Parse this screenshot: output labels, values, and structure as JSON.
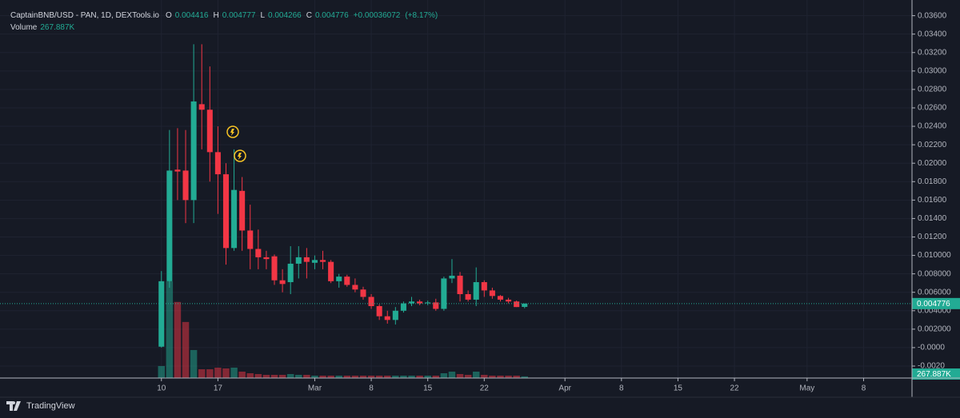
{
  "chart_data": {
    "type": "candlestick",
    "title": "CaptainBNB/USD - PAN, 1D, DEXTools.io",
    "ohlc_keys": [
      "O",
      "H",
      "L",
      "C"
    ],
    "change": "+0.00036072",
    "change_percent": "(+8.17%)",
    "volume_title": "Volume",
    "volume_label": "267.887K",
    "up_color": "#22ab94",
    "down_color": "#f23645",
    "grid": true,
    "x": [
      "02-10",
      "02-11",
      "02-12",
      "02-13",
      "02-14",
      "02-15",
      "02-16",
      "02-17",
      "02-18",
      "02-19",
      "02-20",
      "02-21",
      "02-22",
      "02-23",
      "02-24",
      "02-25",
      "02-26",
      "02-27",
      "02-28",
      "03-01",
      "03-02",
      "03-03",
      "03-04",
      "03-05",
      "03-06",
      "03-07",
      "03-08",
      "03-09",
      "03-10",
      "03-11",
      "03-12",
      "03-13",
      "03-14",
      "03-15",
      "03-16",
      "03-17",
      "03-18",
      "03-19",
      "03-20",
      "03-21",
      "03-22",
      "03-23",
      "03-24",
      "03-25",
      "03-26",
      "03-27"
    ],
    "open": [
      0.0001,
      0.0072,
      0.0193,
      0.0192,
      0.016,
      0.0264,
      0.0258,
      0.0212,
      0.0188,
      0.0108,
      0.017,
      0.0127,
      0.0107,
      0.0098,
      0.0099,
      0.0073,
      0.0071,
      0.0091,
      0.0098,
      0.0092,
      0.0095,
      0.0093,
      0.0072,
      0.0077,
      0.0068,
      0.0063,
      0.0055,
      0.0045,
      0.0034,
      0.003,
      0.004,
      0.0048,
      0.005,
      0.0048,
      0.0049,
      0.0042,
      0.0075,
      0.0078,
      0.0058,
      0.0052,
      0.0071,
      0.0062,
      0.0056,
      0.0052,
      0.005,
      0.004416
    ],
    "high": [
      0.0083,
      0.0236,
      0.0238,
      0.0236,
      0.0329,
      0.0329,
      0.0305,
      0.024,
      0.02,
      0.0215,
      0.0185,
      0.0155,
      0.0128,
      0.0105,
      0.0101,
      0.0085,
      0.011,
      0.011,
      0.0108,
      0.01,
      0.0105,
      0.0095,
      0.008,
      0.0079,
      0.0075,
      0.0066,
      0.0058,
      0.0047,
      0.004,
      0.0044,
      0.005,
      0.0055,
      0.0052,
      0.0051,
      0.0053,
      0.0077,
      0.0096,
      0.0082,
      0.0062,
      0.0087,
      0.0073,
      0.0065,
      0.0057,
      0.0054,
      0.0051,
      0.004777
    ],
    "low": [
      0.0,
      0.0065,
      0.016,
      0.0135,
      0.0135,
      0.0215,
      0.018,
      0.0145,
      0.009,
      0.0105,
      0.0105,
      0.0085,
      0.0085,
      0.0085,
      0.0068,
      0.006,
      0.0058,
      0.0075,
      0.0075,
      0.0085,
      0.0085,
      0.007,
      0.0065,
      0.0066,
      0.006,
      0.0052,
      0.0042,
      0.003,
      0.0026,
      0.0025,
      0.0038,
      0.0045,
      0.0046,
      0.0046,
      0.004,
      0.004,
      0.007,
      0.005,
      0.005,
      0.0045,
      0.0055,
      0.0053,
      0.005,
      0.0048,
      0.0044,
      0.004266
    ],
    "close": [
      0.0072,
      0.0192,
      0.0191,
      0.016,
      0.0267,
      0.0258,
      0.0212,
      0.0188,
      0.0108,
      0.0171,
      0.0127,
      0.0107,
      0.0098,
      0.0096,
      0.0073,
      0.0069,
      0.0091,
      0.0098,
      0.0093,
      0.0095,
      0.0093,
      0.0072,
      0.0077,
      0.0068,
      0.0063,
      0.0055,
      0.0045,
      0.0034,
      0.003,
      0.004,
      0.0048,
      0.005,
      0.0048,
      0.0049,
      0.0042,
      0.0075,
      0.0078,
      0.0058,
      0.0052,
      0.0071,
      0.0062,
      0.0056,
      0.0052,
      0.005,
      0.0044,
      0.004776
    ],
    "volume": [
      1950,
      15700,
      12350,
      9100,
      4550,
      1430,
      1430,
      1690,
      1560,
      1690,
      1040,
      780,
      650,
      520,
      520,
      520,
      650,
      520,
      520,
      390,
      390,
      390,
      390,
      390,
      390,
      390,
      390,
      390,
      390,
      390,
      390,
      390,
      390,
      390,
      390,
      780,
      1040,
      650,
      520,
      1040,
      520,
      390,
      390,
      390,
      390,
      267.887
    ],
    "xlim": [
      "01-21",
      "05-14"
    ],
    "xticks": [
      {
        "value": "02-10",
        "label": "10"
      },
      {
        "value": "02-17",
        "label": "17"
      },
      {
        "value": "03-01",
        "label": "Mar"
      },
      {
        "value": "03-08",
        "label": "8"
      },
      {
        "value": "03-15",
        "label": "15"
      },
      {
        "value": "03-22",
        "label": "22"
      },
      {
        "value": "04-01",
        "label": "Apr"
      },
      {
        "value": "04-08",
        "label": "8"
      },
      {
        "value": "04-15",
        "label": "15"
      },
      {
        "value": "04-22",
        "label": "22"
      },
      {
        "value": "05-01",
        "label": "May"
      },
      {
        "value": "05-08",
        "label": "8"
      }
    ],
    "ylim": [
      -0.0033,
      0.0377
    ],
    "yticks": [
      {
        "value": 0.036,
        "label": "0.03600"
      },
      {
        "value": 0.034,
        "label": "0.03400"
      },
      {
        "value": 0.032,
        "label": "0.03200"
      },
      {
        "value": 0.03,
        "label": "0.03000"
      },
      {
        "value": 0.028,
        "label": "0.02800"
      },
      {
        "value": 0.026,
        "label": "0.02600"
      },
      {
        "value": 0.024,
        "label": "0.02400"
      },
      {
        "value": 0.022,
        "label": "0.02200"
      },
      {
        "value": 0.02,
        "label": "0.02000"
      },
      {
        "value": 0.018,
        "label": "0.01800"
      },
      {
        "value": 0.016,
        "label": "0.01600"
      },
      {
        "value": 0.014,
        "label": "0.01400"
      },
      {
        "value": 0.012,
        "label": "0.01200"
      },
      {
        "value": 0.01,
        "label": "0.010000"
      },
      {
        "value": 0.008,
        "label": "0.008000"
      },
      {
        "value": 0.006,
        "label": "0.006000"
      },
      {
        "value": 0.004,
        "label": "0.004000"
      },
      {
        "value": 0.002,
        "label": "0.002000"
      },
      {
        "value": 0,
        "label": "-0.0000"
      },
      {
        "value": -0.002,
        "label": "-0.0020"
      }
    ]
  },
  "footer": {
    "brand": "TradingView"
  }
}
